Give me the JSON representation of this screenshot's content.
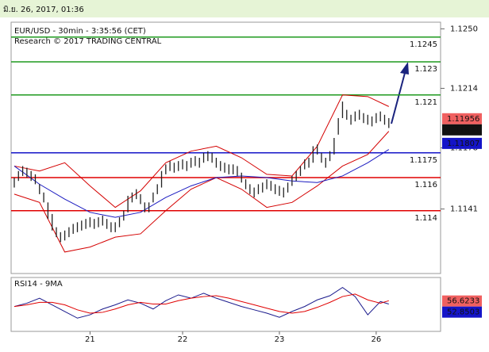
{
  "timestamp": "มิ.ย. 26, 2017, 01:36",
  "chart_data": [
    {
      "type": "ohlc",
      "title": "EUR/USD - 30min - 3:35:56 (CET)",
      "subtitle": "Research © 2017 TRADING CENTRAL",
      "color": "#222222",
      "high": [
        1.116,
        1.1164,
        1.1167,
        1.1166,
        1.1164,
        1.1162,
        1.1156,
        1.1151,
        1.1145,
        1.1138,
        1.113,
        1.1127,
        1.1128,
        1.113,
        1.1132,
        1.1133,
        1.1134,
        1.1135,
        1.1136,
        1.1135,
        1.1136,
        1.1137,
        1.1135,
        1.1133,
        1.1133,
        1.1136,
        1.114,
        1.1149,
        1.1151,
        1.1153,
        1.115,
        1.1145,
        1.1145,
        1.1151,
        1.1156,
        1.1164,
        1.1168,
        1.117,
        1.1169,
        1.117,
        1.1171,
        1.117,
        1.1172,
        1.1173,
        1.1172,
        1.1175,
        1.1176,
        1.1175,
        1.1172,
        1.117,
        1.1169,
        1.1168,
        1.1168,
        1.1167,
        1.1163,
        1.1159,
        1.1156,
        1.1154,
        1.1156,
        1.1157,
        1.1159,
        1.1158,
        1.1156,
        1.1155,
        1.1154,
        1.1157,
        1.1161,
        1.1164,
        1.1167,
        1.1171,
        1.1172,
        1.1179,
        1.118,
        1.1175,
        1.1172,
        1.1176,
        1.1184,
        1.1196,
        1.1206,
        1.1201,
        1.1198,
        1.12,
        1.1201,
        1.1199,
        1.1198,
        1.1197,
        1.1199,
        1.12,
        1.1198,
        1.1196
      ],
      "low": [
        1.1154,
        1.1158,
        1.1161,
        1.116,
        1.1158,
        1.1156,
        1.115,
        1.1145,
        1.1135,
        1.1128,
        1.1124,
        1.1121,
        1.1122,
        1.1124,
        1.1126,
        1.1127,
        1.1128,
        1.1129,
        1.113,
        1.1129,
        1.113,
        1.1131,
        1.1129,
        1.1127,
        1.1127,
        1.113,
        1.1134,
        1.1139,
        1.1145,
        1.1147,
        1.1144,
        1.1139,
        1.1139,
        1.1145,
        1.115,
        1.1154,
        1.1162,
        1.1164,
        1.1163,
        1.1164,
        1.1165,
        1.1164,
        1.1166,
        1.1167,
        1.1166,
        1.1169,
        1.117,
        1.1169,
        1.1166,
        1.1164,
        1.1163,
        1.1162,
        1.1162,
        1.1161,
        1.1157,
        1.1153,
        1.115,
        1.1148,
        1.115,
        1.1151,
        1.1153,
        1.1152,
        1.115,
        1.1149,
        1.1148,
        1.1151,
        1.1155,
        1.1158,
        1.1161,
        1.1165,
        1.1166,
        1.1169,
        1.1174,
        1.1169,
        1.1166,
        1.117,
        1.1174,
        1.1186,
        1.1196,
        1.1195,
        1.1192,
        1.1194,
        1.1195,
        1.1193,
        1.1192,
        1.1191,
        1.1193,
        1.1194,
        1.1192,
        1.119
      ],
      "overlays": [
        {
          "color": "#d40000",
          "x": [
            0,
            6,
            12,
            18,
            24,
            30,
            36,
            42,
            48,
            54,
            60,
            66,
            72,
            78,
            84,
            89
          ],
          "values": [
            1.1167,
            1.1164,
            1.1169,
            1.1155,
            1.1142,
            1.1152,
            1.1169,
            1.1176,
            1.1179,
            1.1172,
            1.1162,
            1.1161,
            1.1179,
            1.121,
            1.1209,
            1.1203
          ]
        },
        {
          "color": "#d40000",
          "x": [
            0,
            6,
            12,
            18,
            24,
            30,
            36,
            42,
            48,
            54,
            60,
            66,
            72,
            78,
            84,
            89
          ],
          "values": [
            1.115,
            1.1145,
            1.1115,
            1.1118,
            1.1124,
            1.1126,
            1.114,
            1.1153,
            1.116,
            1.1153,
            1.1142,
            1.1145,
            1.1155,
            1.1167,
            1.1174,
            1.1188
          ]
        },
        {
          "color": "#1a1ac0",
          "x": [
            0,
            6,
            12,
            18,
            24,
            30,
            36,
            42,
            48,
            54,
            60,
            66,
            72,
            78,
            84,
            89
          ],
          "values": [
            1.1167,
            1.1156,
            1.1147,
            1.1139,
            1.1136,
            1.1139,
            1.1148,
            1.1155,
            1.116,
            1.1161,
            1.116,
            1.1158,
            1.1157,
            1.1161,
            1.1169,
            1.1177
          ]
        }
      ],
      "levels": [
        {
          "value": 1.1245,
          "color": "#1e9a1e"
        },
        {
          "value": 1.123,
          "color": "#1e9a1e"
        },
        {
          "value": 1.121,
          "color": "#1e9a1e"
        },
        {
          "value": 1.1175,
          "color": "#1414c8"
        },
        {
          "value": 1.116,
          "color": "#e00000"
        },
        {
          "value": 1.114,
          "color": "#e00000"
        }
      ],
      "price_tags": [
        {
          "value": 1.11956,
          "color": "#f06060"
        },
        {
          "value": 1.11931,
          "color": "#111111"
        },
        {
          "value": 1.11807,
          "color": "#1414c8"
        }
      ],
      "xlim": [
        -0.75,
        101.3
      ],
      "ylim": [
        1.1102,
        1.1254
      ],
      "yticks": [
        {
          "value": 1.125,
          "label": "1.1250"
        },
        1.1214,
        1.1178,
        1.1141
      ]
    },
    {
      "type": "line",
      "title": "RSI14 - 9MA",
      "series": [
        {
          "color": "#1a1a8c",
          "x": [
            0,
            3,
            6,
            9,
            12,
            15,
            18,
            21,
            24,
            27,
            30,
            33,
            36,
            39,
            42,
            45,
            48,
            51,
            54,
            57,
            60,
            63,
            66,
            69,
            72,
            75,
            78,
            81,
            84,
            87,
            89
          ],
          "values": [
            50,
            54,
            60,
            52,
            44,
            36,
            40,
            47,
            52,
            58,
            54,
            47,
            57,
            64,
            60,
            66,
            60,
            55,
            50,
            46,
            42,
            37,
            44,
            50,
            58,
            63,
            73,
            62,
            40,
            56,
            53
          ]
        },
        {
          "color": "#e00000",
          "x": [
            0,
            3,
            6,
            9,
            12,
            15,
            18,
            21,
            24,
            27,
            30,
            33,
            36,
            39,
            42,
            45,
            48,
            51,
            54,
            57,
            60,
            63,
            66,
            69,
            72,
            75,
            78,
            81,
            84,
            87,
            89
          ],
          "values": [
            50,
            52,
            55,
            55,
            52,
            46,
            42,
            43,
            47,
            52,
            55,
            53,
            53,
            57,
            60,
            62,
            63,
            60,
            56,
            52,
            48,
            44,
            42,
            44,
            49,
            55,
            62,
            65,
            58,
            54,
            57
          ]
        }
      ],
      "price_tags": [
        {
          "value": 56.6233,
          "color": "#f06060"
        },
        {
          "value": 52.8503,
          "color": "#1414c8"
        }
      ],
      "xlim": [
        -0.75,
        101.3
      ],
      "ylim": [
        20,
        85
      ],
      "xticks": [
        {
          "value": 18,
          "label": "21"
        },
        {
          "value": 40,
          "label": "22"
        },
        {
          "value": 63,
          "label": "23"
        },
        {
          "value": 86,
          "label": "26"
        }
      ]
    }
  ]
}
